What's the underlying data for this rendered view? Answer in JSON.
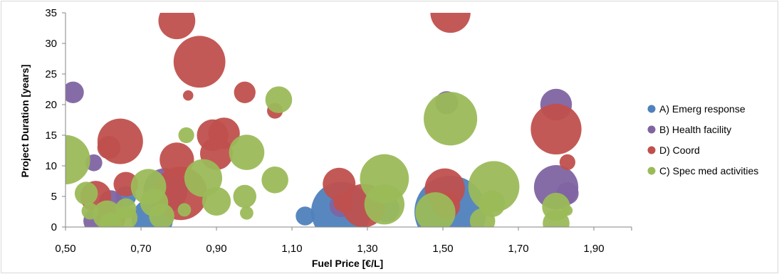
{
  "chart_data": {
    "type": "scatter",
    "title": "",
    "xlabel": "Fuel Price [€/L]",
    "ylabel": "Project Duration [years]",
    "xlim": [
      0.5,
      2.0
    ],
    "ylim": [
      0,
      35
    ],
    "x_ticks": [
      "0,50",
      "0,70",
      "0,90",
      "1,10",
      "1,30",
      "1,50",
      "1,70",
      "1,90"
    ],
    "y_ticks": [
      "0",
      "5",
      "10",
      "15",
      "20",
      "25",
      "30",
      "35"
    ],
    "grid": false,
    "legend_position": "right",
    "series": [
      {
        "name": "A) Emerg response",
        "color": "#4f81bd",
        "points": [
          {
            "x": 0.73,
            "y": 1.3,
            "size": 0.48
          },
          {
            "x": 0.66,
            "y": 5.0,
            "size": 0.12
          },
          {
            "x": 1.135,
            "y": 1.8,
            "size": 0.1
          },
          {
            "x": 1.23,
            "y": 2.5,
            "size": 1.0
          },
          {
            "x": 1.35,
            "y": 3.0,
            "size": 0.2
          },
          {
            "x": 1.52,
            "y": 2.5,
            "size": 1.45
          }
        ]
      },
      {
        "name": "B) Health facility",
        "color": "#8064a2",
        "points": [
          {
            "x": 0.52,
            "y": 22.0,
            "size": 0.13
          },
          {
            "x": 0.575,
            "y": 10.5,
            "size": 0.08
          },
          {
            "x": 0.58,
            "y": 1.0,
            "size": 0.17
          },
          {
            "x": 0.62,
            "y": 4.0,
            "size": 0.17
          },
          {
            "x": 0.765,
            "y": 6.0,
            "size": 0.55
          },
          {
            "x": 1.23,
            "y": 3.5,
            "size": 0.15
          },
          {
            "x": 1.51,
            "y": 20.3,
            "size": 0.15
          },
          {
            "x": 1.8,
            "y": 20.0,
            "size": 0.28
          },
          {
            "x": 1.8,
            "y": 6.5,
            "size": 0.55
          },
          {
            "x": 1.83,
            "y": 5.5,
            "size": 0.14
          }
        ]
      },
      {
        "name": "D) Coord",
        "color": "#c0504d",
        "points": [
          {
            "x": 0.795,
            "y": 33.7,
            "size": 0.38
          },
          {
            "x": 1.52,
            "y": 35.0,
            "size": 0.45
          },
          {
            "x": 0.855,
            "y": 27.0,
            "size": 0.75
          },
          {
            "x": 0.975,
            "y": 22.0,
            "size": 0.13
          },
          {
            "x": 0.825,
            "y": 21.5,
            "size": 0.03
          },
          {
            "x": 1.055,
            "y": 19.0,
            "size": 0.07
          },
          {
            "x": 0.89,
            "y": 15.0,
            "size": 0.28
          },
          {
            "x": 0.92,
            "y": 15.3,
            "size": 0.28
          },
          {
            "x": 0.615,
            "y": 13.0,
            "size": 0.15
          },
          {
            "x": 0.645,
            "y": 14.0,
            "size": 0.58
          },
          {
            "x": 0.9,
            "y": 12.0,
            "size": 0.3
          },
          {
            "x": 0.795,
            "y": 11.0,
            "size": 0.33
          },
          {
            "x": 1.8,
            "y": 16.0,
            "size": 0.72
          },
          {
            "x": 1.83,
            "y": 10.6,
            "size": 0.07
          },
          {
            "x": 0.66,
            "y": 7.0,
            "size": 0.17
          },
          {
            "x": 0.58,
            "y": 5.0,
            "size": 0.27
          },
          {
            "x": 0.805,
            "y": 5.5,
            "size": 0.8
          },
          {
            "x": 1.225,
            "y": 7.0,
            "size": 0.3
          },
          {
            "x": 1.29,
            "y": 3.5,
            "size": 0.53
          },
          {
            "x": 1.505,
            "y": 6.3,
            "size": 0.45
          },
          {
            "x": 1.235,
            "y": 4.0,
            "size": 0.1
          },
          {
            "x": 0.62,
            "y": 1.5,
            "size": 0.24
          },
          {
            "x": 1.51,
            "y": 3.5,
            "size": 0.2
          }
        ]
      },
      {
        "name": "C) Spec med activities",
        "color": "#9bbb59",
        "points": [
          {
            "x": 0.5,
            "y": 11.0,
            "size": 0.68
          },
          {
            "x": 0.555,
            "y": 5.5,
            "size": 0.15
          },
          {
            "x": 0.565,
            "y": 2.6,
            "size": 0.08
          },
          {
            "x": 0.61,
            "y": 2.0,
            "size": 0.23
          },
          {
            "x": 0.62,
            "y": 0.5,
            "size": 0.15
          },
          {
            "x": 0.66,
            "y": 1.5,
            "size": 0.15
          },
          {
            "x": 0.66,
            "y": 3.0,
            "size": 0.12
          },
          {
            "x": 0.72,
            "y": 6.6,
            "size": 0.35
          },
          {
            "x": 0.735,
            "y": 4.0,
            "size": 0.22
          },
          {
            "x": 0.755,
            "y": 1.8,
            "size": 0.18
          },
          {
            "x": 0.82,
            "y": 15.0,
            "size": 0.07
          },
          {
            "x": 0.815,
            "y": 2.8,
            "size": 0.05
          },
          {
            "x": 0.865,
            "y": 8.0,
            "size": 0.4
          },
          {
            "x": 0.9,
            "y": 4.2,
            "size": 0.23
          },
          {
            "x": 0.975,
            "y": 5.0,
            "size": 0.15
          },
          {
            "x": 0.98,
            "y": 2.3,
            "size": 0.05
          },
          {
            "x": 0.98,
            "y": 12.2,
            "size": 0.35
          },
          {
            "x": 1.055,
            "y": 7.7,
            "size": 0.2
          },
          {
            "x": 1.065,
            "y": 20.8,
            "size": 0.2
          },
          {
            "x": 1.345,
            "y": 7.9,
            "size": 0.67
          },
          {
            "x": 1.345,
            "y": 3.7,
            "size": 0.45
          },
          {
            "x": 1.48,
            "y": 2.4,
            "size": 0.45
          },
          {
            "x": 1.52,
            "y": 17.7,
            "size": 0.8
          },
          {
            "x": 1.605,
            "y": 1.0,
            "size": 0.18
          },
          {
            "x": 1.635,
            "y": 6.6,
            "size": 0.73
          },
          {
            "x": 1.63,
            "y": 3.8,
            "size": 0.2
          },
          {
            "x": 1.8,
            "y": 3.3,
            "size": 0.22
          },
          {
            "x": 1.8,
            "y": 0.6,
            "size": 0.2
          },
          {
            "x": 1.83,
            "y": 2.7,
            "size": 0.03
          }
        ]
      }
    ],
    "legend_order": [
      0,
      1,
      2,
      3
    ]
  }
}
